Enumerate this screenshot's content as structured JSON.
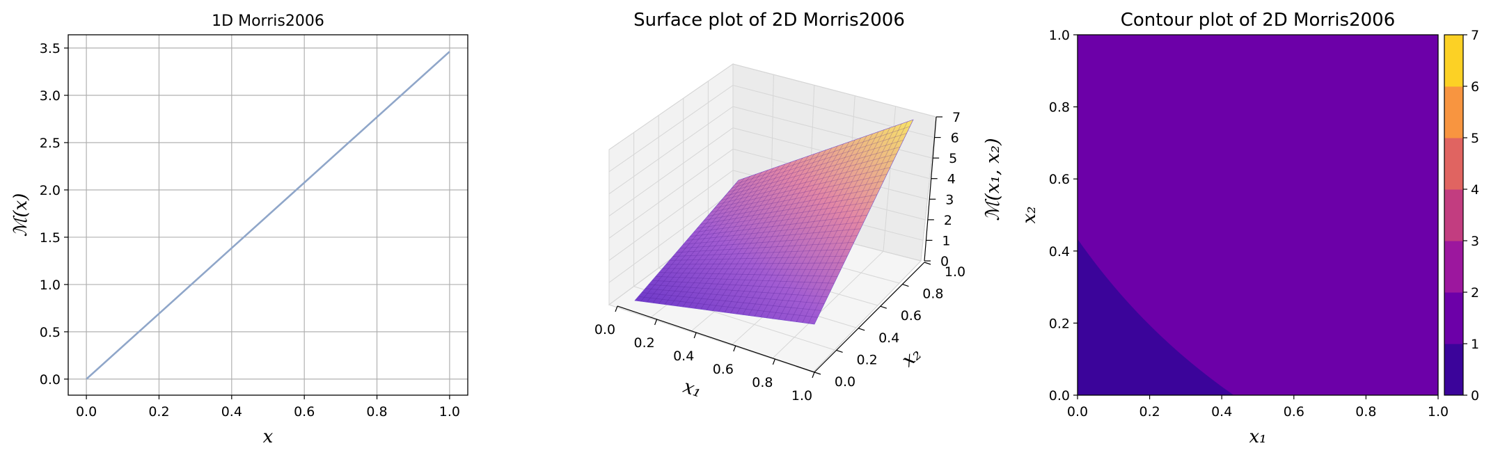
{
  "chart_data": [
    {
      "type": "line",
      "title": "1D Morris2006",
      "xlabel": "x",
      "ylabel": "ℳ(x)",
      "xlim": [
        -0.05,
        1.05
      ],
      "ylim": [
        -0.17,
        3.64
      ],
      "xticks": [
        "0.0",
        "0.2",
        "0.4",
        "0.6",
        "0.8",
        "1.0"
      ],
      "yticks": [
        "0.0",
        "0.5",
        "1.0",
        "1.5",
        "2.0",
        "2.5",
        "3.0",
        "3.5"
      ],
      "grid": true,
      "line_color": "#8fa6c9",
      "series": [
        {
          "x": [
            0.0,
            0.2,
            0.4,
            0.6,
            0.8,
            1.0
          ],
          "y": [
            0.0,
            0.692,
            1.385,
            2.077,
            2.77,
            3.462
          ]
        }
      ]
    },
    {
      "type": "surface",
      "title": "Surface plot of 2D Morris2006",
      "xlabel": "x₁",
      "ylabel": "x₂",
      "zlabel": "ℳ(x₁, x₂)",
      "xticks": [
        "0.0",
        "0.2",
        "0.4",
        "0.6",
        "0.8",
        "1.0"
      ],
      "yticks": [
        "0.0",
        "0.2",
        "0.4",
        "0.6",
        "0.8",
        "1.0"
      ],
      "zticks": [
        "0",
        "1",
        "2",
        "3",
        "4",
        "5",
        "6",
        "7"
      ],
      "zlim": [
        0,
        7
      ],
      "colormap": "plasma",
      "corner_values": {
        "x0y0": 0.0,
        "x1y0": 3.46,
        "x0y1": 3.46,
        "x1y1": 6.92
      }
    },
    {
      "type": "contour",
      "title": "Contour plot of 2D Morris2006",
      "xlabel": "x₁",
      "ylabel": "x₂",
      "xticks": [
        "0.0",
        "0.2",
        "0.4",
        "0.6",
        "0.8",
        "1.0"
      ],
      "yticks": [
        "0.0",
        "0.2",
        "0.4",
        "0.6",
        "0.8",
        "1.0"
      ],
      "levels": [
        0,
        1,
        2,
        3,
        4,
        5,
        6,
        7
      ],
      "colorbar_ticks": [
        "0",
        "1",
        "2",
        "3",
        "4",
        "5",
        "6",
        "7"
      ],
      "level_colors": [
        "#330597",
        "#6100a7",
        "#8b0aa5",
        "#b12a90",
        "#cc4778",
        "#e16462",
        "#f2844b",
        "#fca636",
        "#fcce25"
      ],
      "band_colors": [
        "#3b049a",
        "#6c00a8",
        "#9c179e",
        "#c23d80",
        "#e06461",
        "#f89540",
        "#fcd125"
      ]
    }
  ]
}
